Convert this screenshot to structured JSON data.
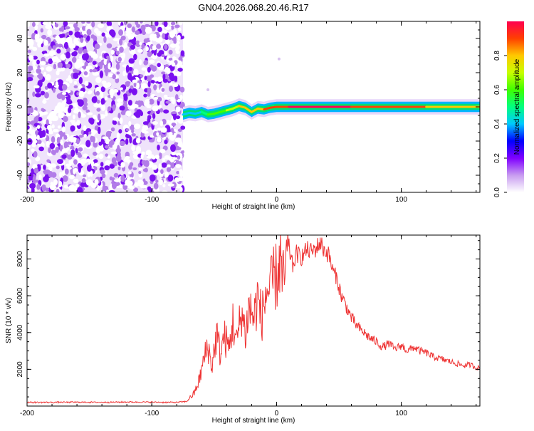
{
  "title": "GN04.2026.068.20.46.R17",
  "chart_data": [
    {
      "type": "heatmap",
      "xlabel": "Height of straight line (km)",
      "ylabel": "Frequency (Hz)",
      "xlim": [
        -200,
        163
      ],
      "ylim": [
        -50,
        50
      ],
      "xticks": [
        -200,
        -100,
        0,
        100
      ],
      "yticks": [
        -40,
        -20,
        0,
        20,
        40
      ],
      "colorbar": {
        "label": "Normalized spectral amplitude",
        "range": [
          0,
          1
        ],
        "ticks": [
          "0.0",
          "0.2",
          "0.4",
          "0.6",
          "0.8"
        ],
        "colors": [
          "#ffffff",
          "#c89cf0",
          "#8000ff",
          "#0000ff",
          "#00c8ff",
          "#00ff80",
          "#40ff00",
          "#c8ff00",
          "#ffc800",
          "#ff4000",
          "#ff0050"
        ]
      },
      "noise_region_x": [
        -200,
        -75
      ],
      "carrier": [
        {
          "x": -75,
          "y": -4.5,
          "amp": 0.35
        },
        {
          "x": -70,
          "y": -3.5,
          "amp": 0.4
        },
        {
          "x": -65,
          "y": -4,
          "amp": 0.4
        },
        {
          "x": -60,
          "y": -3,
          "amp": 0.45
        },
        {
          "x": -55,
          "y": -4.5,
          "amp": 0.55
        },
        {
          "x": -50,
          "y": -4,
          "amp": 0.55
        },
        {
          "x": -45,
          "y": -3,
          "amp": 0.6
        },
        {
          "x": -40,
          "y": -2,
          "amp": 0.65
        },
        {
          "x": -35,
          "y": -1,
          "amp": 0.7
        },
        {
          "x": -30,
          "y": 0.5,
          "amp": 0.75
        },
        {
          "x": -25,
          "y": -0.5,
          "amp": 0.8
        },
        {
          "x": -20,
          "y": -3,
          "amp": 0.75
        },
        {
          "x": -15,
          "y": -1,
          "amp": 0.85
        },
        {
          "x": -10,
          "y": -1.5,
          "amp": 0.8
        },
        {
          "x": -5,
          "y": -0.5,
          "amp": 0.9
        },
        {
          "x": 0,
          "y": 0,
          "amp": 0.9
        },
        {
          "x": 10,
          "y": 0,
          "amp": 0.95
        },
        {
          "x": 30,
          "y": 0,
          "amp": 1.0
        },
        {
          "x": 60,
          "y": 0,
          "amp": 0.95
        },
        {
          "x": 90,
          "y": 0,
          "amp": 0.9
        },
        {
          "x": 120,
          "y": 0,
          "amp": 0.85
        },
        {
          "x": 150,
          "y": 0,
          "amp": 0.8
        },
        {
          "x": 163,
          "y": 0,
          "amp": 0.75
        }
      ]
    },
    {
      "type": "line",
      "xlabel": "Height of straight line (km)",
      "ylabel": "SNR (10 * v/v)",
      "xlim": [
        -200,
        163
      ],
      "ylim": [
        0,
        9300
      ],
      "xticks": [
        -200,
        -100,
        0,
        100
      ],
      "yticks": [
        2000,
        4000,
        6000,
        8000
      ],
      "color": "#ee3333",
      "series": [
        {
          "x": [
            -200,
            -180,
            -160,
            -140,
            -120,
            -100,
            -90,
            -80,
            -72,
            -66,
            -62,
            -58,
            -55,
            -52,
            -48,
            -45,
            -42,
            -38,
            -35,
            -32,
            -28,
            -25,
            -22,
            -18,
            -15,
            -12,
            -8,
            -5,
            -2,
            0,
            3,
            5,
            8,
            10,
            13,
            16,
            20,
            24,
            28,
            32,
            35,
            38,
            42,
            45,
            48,
            52,
            56,
            60,
            65,
            70,
            75,
            80,
            85,
            90,
            95,
            100,
            105,
            110,
            115,
            120,
            125,
            130,
            135,
            140,
            145,
            150,
            155,
            160,
            163
          ],
          "y": [
            200,
            200,
            210,
            200,
            220,
            210,
            200,
            200,
            250,
            700,
            1400,
            2600,
            3300,
            2100,
            3900,
            2800,
            3800,
            3100,
            4600,
            3400,
            5200,
            3900,
            5400,
            4800,
            6000,
            4700,
            6300,
            6200,
            7000,
            7000,
            8000,
            6600,
            7700,
            8600,
            7600,
            8300,
            8100,
            8500,
            8400,
            8600,
            8900,
            8500,
            8200,
            7400,
            7000,
            6000,
            5400,
            4800,
            4300,
            4000,
            3700,
            3500,
            3200,
            3400,
            3100,
            3300,
            3000,
            3200,
            3000,
            2900,
            2700,
            2600,
            2500,
            2400,
            2300,
            2200,
            2250,
            2100,
            2050
          ]
        }
      ]
    }
  ]
}
